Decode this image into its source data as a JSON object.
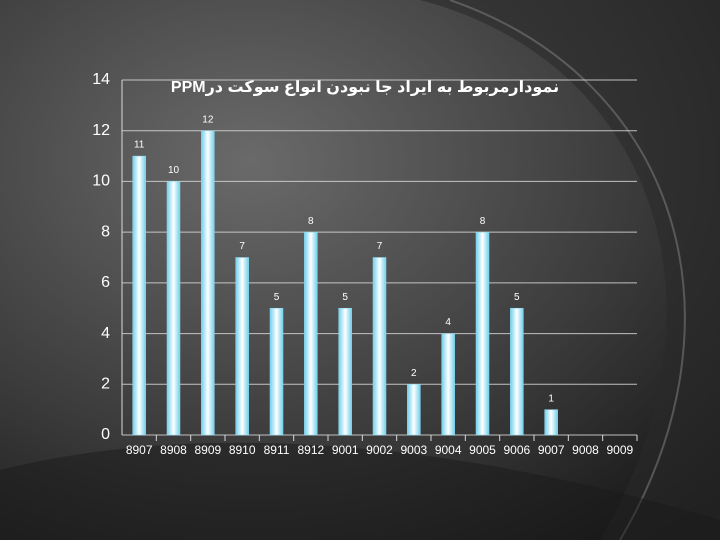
{
  "chart_data": {
    "type": "bar",
    "title": "نمودارمربوط به ایراد جا نبودن انواع سوکت درPPM",
    "categories": [
      "8907",
      "8908",
      "8909",
      "8910",
      "8911",
      "8912",
      "9001",
      "9002",
      "9003",
      "9004",
      "9005",
      "9006",
      "9007",
      "9008",
      "9009"
    ],
    "values": [
      11,
      10,
      12,
      7,
      5,
      8,
      5,
      7,
      2,
      4,
      8,
      5,
      1,
      null,
      null
    ],
    "color": "#8adcf2",
    "ylim": [
      0,
      14
    ],
    "yticks": [
      0,
      2,
      4,
      6,
      8,
      10,
      12,
      14
    ],
    "grid": true
  }
}
